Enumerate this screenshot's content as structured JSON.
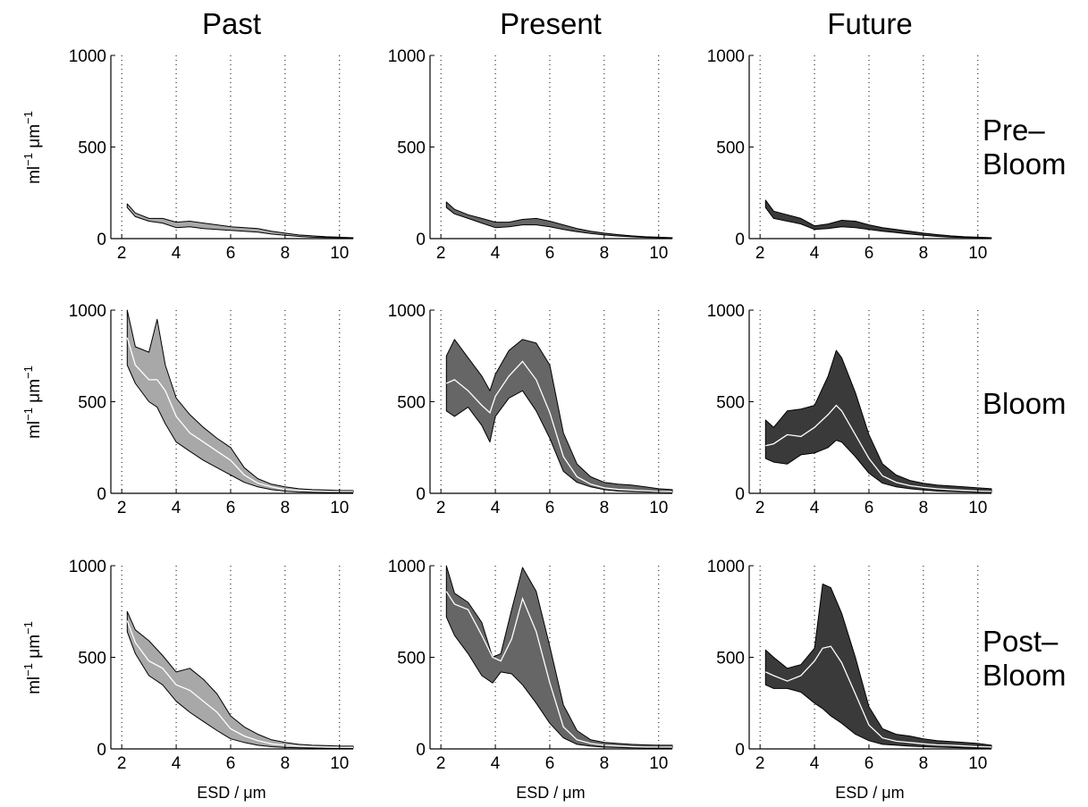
{
  "figure": {
    "column_titles": [
      "Past",
      "Present",
      "Future"
    ],
    "row_labels": [
      {
        "lines": [
          "Pre–",
          "Bloom"
        ]
      },
      {
        "lines": [
          "Bloom"
        ]
      },
      {
        "lines": [
          "Post–",
          "Bloom"
        ]
      }
    ],
    "ylabel": {
      "unit1": "ml",
      "exp1": "−1",
      "unit2": "μm",
      "exp2": "−1"
    },
    "xlabel": "ESD / μm"
  },
  "colors": {
    "past_fill": "#a8a8a8",
    "present_fill": "#666666",
    "future_fill": "#3a3a3a",
    "median_line": "#ffffff",
    "outline": "#000000"
  },
  "chart_data": [
    {
      "type": "area",
      "row": "Pre–Bloom",
      "column": "Past",
      "xlim": [
        1.6,
        10.5
      ],
      "ylim": [
        0,
        1000
      ],
      "xticks": [
        2,
        4,
        6,
        8,
        10
      ],
      "yticks": [
        0,
        500,
        1000
      ],
      "grid": "x-dotted",
      "x": [
        2.2,
        2.5,
        3,
        3.5,
        4,
        4.5,
        5,
        5.5,
        6,
        6.5,
        7,
        7.5,
        8,
        8.5,
        9,
        9.5,
        10,
        10.5
      ],
      "upper": [
        190,
        140,
        110,
        110,
        90,
        95,
        85,
        75,
        65,
        60,
        55,
        40,
        30,
        20,
        15,
        10,
        8,
        5
      ],
      "lower": [
        170,
        120,
        95,
        85,
        60,
        65,
        55,
        50,
        45,
        40,
        35,
        25,
        18,
        12,
        8,
        6,
        5,
        3
      ],
      "median": []
    },
    {
      "type": "area",
      "row": "Pre–Bloom",
      "column": "Present",
      "xlim": [
        1.6,
        10.5
      ],
      "ylim": [
        0,
        1000
      ],
      "xticks": [
        2,
        4,
        6,
        8,
        10
      ],
      "yticks": [
        0,
        500,
        1000
      ],
      "grid": "x-dotted",
      "x": [
        2.2,
        2.5,
        3,
        3.5,
        4,
        4.5,
        5,
        5.5,
        6,
        6.5,
        7,
        7.5,
        8,
        8.5,
        9,
        9.5,
        10,
        10.5
      ],
      "upper": [
        200,
        160,
        130,
        110,
        90,
        90,
        105,
        110,
        95,
        75,
        55,
        40,
        30,
        22,
        15,
        10,
        8,
        5
      ],
      "lower": [
        170,
        135,
        110,
        85,
        60,
        65,
        75,
        75,
        65,
        50,
        38,
        28,
        20,
        14,
        10,
        7,
        5,
        3
      ],
      "median": []
    },
    {
      "type": "area",
      "row": "Pre–Bloom",
      "column": "Future",
      "xlim": [
        1.6,
        10.5
      ],
      "ylim": [
        0,
        1000
      ],
      "xticks": [
        2,
        4,
        6,
        8,
        10
      ],
      "yticks": [
        0,
        500,
        1000
      ],
      "grid": "x-dotted",
      "x": [
        2.2,
        2.5,
        3,
        3.5,
        4,
        4.5,
        5,
        5.5,
        6,
        6.5,
        7,
        7.5,
        8,
        8.5,
        9,
        9.5,
        10,
        10.5
      ],
      "upper": [
        210,
        150,
        130,
        110,
        70,
        80,
        100,
        95,
        75,
        60,
        50,
        40,
        30,
        22,
        15,
        10,
        8,
        5
      ],
      "lower": [
        170,
        110,
        95,
        80,
        50,
        55,
        65,
        60,
        50,
        40,
        33,
        25,
        18,
        12,
        8,
        6,
        5,
        3
      ],
      "median": []
    },
    {
      "type": "area",
      "row": "Bloom",
      "column": "Past",
      "xlim": [
        1.6,
        10.5
      ],
      "ylim": [
        0,
        1000
      ],
      "xticks": [
        2,
        4,
        6,
        8,
        10
      ],
      "yticks": [
        0,
        500,
        1000
      ],
      "grid": "x-dotted",
      "x": [
        2.2,
        2.5,
        3,
        3.3,
        3.6,
        4,
        4.5,
        5,
        5.5,
        6,
        6.5,
        7,
        7.5,
        8,
        8.5,
        9,
        9.5,
        10,
        10.5
      ],
      "upper": [
        1000,
        800,
        770,
        950,
        700,
        520,
        430,
        360,
        300,
        250,
        140,
        80,
        50,
        35,
        25,
        20,
        18,
        15,
        15
      ],
      "lower": [
        700,
        600,
        500,
        470,
        380,
        280,
        230,
        180,
        140,
        100,
        60,
        35,
        20,
        12,
        8,
        6,
        5,
        5,
        5
      ],
      "median": [
        850,
        700,
        620,
        620,
        560,
        420,
        330,
        280,
        230,
        180,
        100,
        55,
        35,
        20,
        15,
        12,
        10,
        10,
        10
      ]
    },
    {
      "type": "area",
      "row": "Bloom",
      "column": "Present",
      "xlim": [
        1.6,
        10.5
      ],
      "ylim": [
        0,
        1000
      ],
      "xticks": [
        2,
        4,
        6,
        8,
        10
      ],
      "yticks": [
        0,
        500,
        1000
      ],
      "grid": "x-dotted",
      "x": [
        2.2,
        2.5,
        3,
        3.5,
        3.8,
        4,
        4.5,
        5,
        5.5,
        6,
        6.5,
        7,
        7.5,
        8,
        8.5,
        9,
        9.5,
        10,
        10.5
      ],
      "upper": [
        750,
        840,
        740,
        640,
        560,
        650,
        780,
        840,
        820,
        700,
        330,
        160,
        90,
        60,
        50,
        45,
        35,
        25,
        20
      ],
      "lower": [
        450,
        420,
        470,
        370,
        280,
        420,
        520,
        560,
        450,
        300,
        120,
        60,
        35,
        20,
        12,
        10,
        8,
        6,
        5
      ],
      "median": [
        600,
        620,
        560,
        480,
        440,
        530,
        640,
        720,
        620,
        440,
        200,
        90,
        50,
        30,
        22,
        18,
        14,
        10,
        8
      ]
    },
    {
      "type": "area",
      "row": "Bloom",
      "column": "Future",
      "xlim": [
        1.6,
        10.5
      ],
      "ylim": [
        0,
        1000
      ],
      "xticks": [
        2,
        4,
        6,
        8,
        10
      ],
      "yticks": [
        0,
        500,
        1000
      ],
      "grid": "x-dotted",
      "x": [
        2.2,
        2.5,
        3,
        3.5,
        4,
        4.5,
        4.8,
        5,
        5.5,
        6,
        6.5,
        7,
        7.5,
        8,
        8.5,
        9,
        9.5,
        10,
        10.5
      ],
      "upper": [
        400,
        360,
        450,
        460,
        480,
        640,
        780,
        740,
        550,
        320,
        160,
        100,
        70,
        55,
        45,
        40,
        35,
        30,
        25
      ],
      "lower": [
        190,
        170,
        160,
        210,
        220,
        250,
        290,
        280,
        200,
        110,
        55,
        35,
        25,
        18,
        12,
        10,
        8,
        6,
        5
      ],
      "median": [
        260,
        270,
        320,
        310,
        360,
        430,
        480,
        450,
        320,
        190,
        95,
        60,
        42,
        32,
        25,
        20,
        16,
        12,
        10
      ]
    },
    {
      "type": "area",
      "row": "Post–Bloom",
      "column": "Past",
      "xlim": [
        1.6,
        10.5
      ],
      "ylim": [
        0,
        1000
      ],
      "xticks": [
        2,
        4,
        6,
        8,
        10
      ],
      "yticks": [
        0,
        500,
        1000
      ],
      "grid": "x-dotted",
      "x": [
        2.2,
        2.5,
        3,
        3.5,
        4,
        4.5,
        5,
        5.5,
        6,
        6.5,
        7,
        7.5,
        8,
        8.5,
        9,
        9.5,
        10,
        10.5
      ],
      "upper": [
        750,
        650,
        590,
        510,
        420,
        440,
        380,
        300,
        180,
        120,
        80,
        50,
        35,
        25,
        20,
        18,
        15,
        15
      ],
      "lower": [
        640,
        520,
        400,
        350,
        260,
        200,
        150,
        100,
        55,
        35,
        20,
        12,
        8,
        6,
        5,
        4,
        4,
        4
      ],
      "median": [
        700,
        580,
        480,
        440,
        350,
        320,
        260,
        200,
        110,
        70,
        45,
        28,
        20,
        15,
        12,
        10,
        9,
        8
      ]
    },
    {
      "type": "area",
      "row": "Post–Bloom",
      "column": "Present",
      "xlim": [
        1.6,
        10.5
      ],
      "ylim": [
        0,
        1000
      ],
      "xticks": [
        2,
        4,
        6,
        8,
        10
      ],
      "yticks": [
        0,
        500,
        1000
      ],
      "grid": "x-dotted",
      "x": [
        2.2,
        2.5,
        3,
        3.5,
        3.9,
        4.2,
        4.6,
        5,
        5.5,
        6,
        6.5,
        7,
        7.5,
        8,
        8.5,
        9,
        9.5,
        10,
        10.5
      ],
      "upper": [
        1000,
        850,
        800,
        690,
        500,
        520,
        760,
        990,
        860,
        560,
        240,
        100,
        50,
        35,
        30,
        25,
        22,
        20,
        20
      ],
      "lower": [
        720,
        620,
        520,
        400,
        360,
        420,
        410,
        350,
        250,
        140,
        60,
        25,
        15,
        10,
        8,
        6,
        5,
        5,
        5
      ],
      "median": [
        860,
        790,
        760,
        620,
        500,
        480,
        600,
        820,
        640,
        360,
        120,
        50,
        30,
        20,
        16,
        12,
        10,
        10,
        10
      ]
    },
    {
      "type": "area",
      "row": "Post–Bloom",
      "column": "Future",
      "xlim": [
        1.6,
        10.5
      ],
      "ylim": [
        0,
        1000
      ],
      "xticks": [
        2,
        4,
        6,
        8,
        10
      ],
      "yticks": [
        0,
        500,
        1000
      ],
      "grid": "x-dotted",
      "x": [
        2.2,
        2.5,
        3,
        3.5,
        4,
        4.3,
        4.6,
        5,
        5.5,
        6,
        6.5,
        7,
        7.5,
        8,
        8.5,
        9,
        9.5,
        10,
        10.5
      ],
      "upper": [
        540,
        500,
        440,
        460,
        550,
        900,
        880,
        740,
        500,
        230,
        110,
        80,
        70,
        55,
        45,
        40,
        35,
        30,
        20
      ],
      "lower": [
        350,
        330,
        330,
        310,
        250,
        220,
        180,
        140,
        80,
        45,
        25,
        20,
        15,
        12,
        10,
        8,
        6,
        5,
        5
      ],
      "median": [
        420,
        400,
        370,
        400,
        480,
        550,
        560,
        470,
        300,
        130,
        60,
        42,
        35,
        28,
        22,
        20,
        16,
        12,
        10
      ]
    }
  ]
}
